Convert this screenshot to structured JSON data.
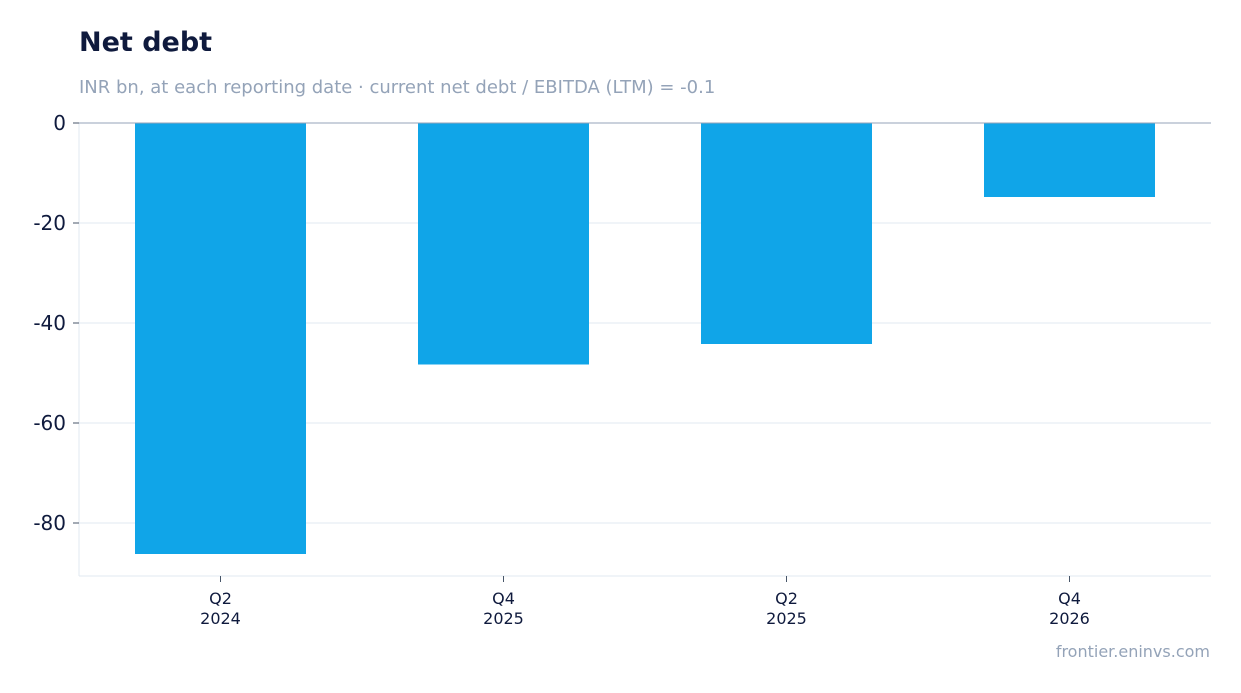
{
  "chart_data": {
    "type": "bar",
    "title": "Net debt",
    "subtitle": "INR bn, at each reporting date · current net debt / EBITDA (LTM) = -0.1",
    "categories": [
      [
        "Q2",
        "2024"
      ],
      [
        "Q4",
        "2025"
      ],
      [
        "Q2",
        "2025"
      ],
      [
        "Q4",
        "2026"
      ]
    ],
    "values": [
      -86.2,
      -48.3,
      -44.2,
      -14.8
    ],
    "ylim": [
      -90.6,
      0
    ],
    "yticks": [
      0,
      -20,
      -40,
      -60,
      -80
    ],
    "xlabel": "",
    "ylabel": "",
    "grid": true,
    "bar_color": "#10a5e8",
    "grid_color": "#e2e8f0",
    "zero_line_color": "#94a3b8",
    "tick_text_color": "#0f1a3d"
  },
  "footer": {
    "source": "frontier.eninvs.com"
  }
}
